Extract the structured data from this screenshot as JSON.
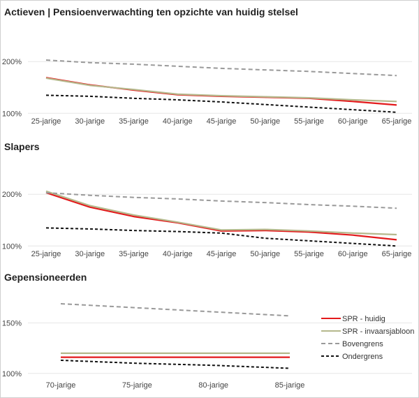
{
  "chart_data": [
    {
      "type": "line",
      "title": "Actieven | Pensioenverwachting ten opzichte van huidig stelsel",
      "categories": [
        "25-jarige",
        "30-jarige",
        "35-jarige",
        "40-jarige",
        "45-jarige",
        "50-jarige",
        "55-jarige",
        "60-jarige",
        "65-jarige"
      ],
      "yticks": [
        "100%",
        "200%"
      ],
      "ylim": [
        0.95,
        2.3
      ],
      "series": [
        {
          "name": "SPR - huidig",
          "color": "#e31a1c",
          "dash": "",
          "values": [
            1.69,
            1.55,
            1.45,
            1.36,
            1.33,
            1.31,
            1.29,
            1.23,
            1.16
          ]
        },
        {
          "name": "SPR - invaarsjabloon",
          "color": "#b5b88c",
          "dash": "",
          "values": [
            1.68,
            1.54,
            1.46,
            1.37,
            1.34,
            1.32,
            1.3,
            1.26,
            1.23
          ]
        },
        {
          "name": "Bovengrens",
          "color": "#999999",
          "dash": "6,4",
          "values": [
            2.03,
            1.98,
            1.95,
            1.91,
            1.87,
            1.84,
            1.81,
            1.77,
            1.73
          ]
        },
        {
          "name": "Ondergrens",
          "color": "#111111",
          "dash": "4,3",
          "values": [
            1.35,
            1.33,
            1.29,
            1.26,
            1.22,
            1.17,
            1.12,
            1.07,
            1.02
          ]
        }
      ]
    },
    {
      "type": "line",
      "title": "Slapers",
      "categories": [
        "25-jarige",
        "30-jarige",
        "35-jarige",
        "40-jarige",
        "45-jarige",
        "50-jarige",
        "55-jarige",
        "60-jarige",
        "65-jarige"
      ],
      "yticks": [
        "100%",
        "200%"
      ],
      "ylim": [
        0.95,
        2.3
      ],
      "series": [
        {
          "name": "SPR - huidig",
          "color": "#e31a1c",
          "dash": "",
          "values": [
            2.03,
            1.75,
            1.57,
            1.45,
            1.29,
            1.3,
            1.27,
            1.21,
            1.12
          ]
        },
        {
          "name": "SPR - invaarsjabloon",
          "color": "#b5b88c",
          "dash": "",
          "values": [
            2.06,
            1.78,
            1.6,
            1.46,
            1.31,
            1.32,
            1.29,
            1.25,
            1.22
          ]
        },
        {
          "name": "Bovengrens",
          "color": "#999999",
          "dash": "6,4",
          "values": [
            2.03,
            1.98,
            1.94,
            1.91,
            1.87,
            1.84,
            1.8,
            1.77,
            1.73
          ]
        },
        {
          "name": "Ondergrens",
          "color": "#111111",
          "dash": "4,3",
          "values": [
            1.35,
            1.33,
            1.3,
            1.28,
            1.25,
            1.15,
            1.1,
            1.05,
            1.0
          ]
        }
      ]
    },
    {
      "type": "line",
      "title": "Gepensioneerden",
      "categories": [
        "70-jarige",
        "75-jarige",
        "80-jarige",
        "85-jarige"
      ],
      "yticks": [
        "100%",
        "150%"
      ],
      "ylim": [
        0.95,
        1.78
      ],
      "legend_position": "right",
      "series": [
        {
          "name": "SPR - huidig",
          "color": "#e31a1c",
          "dash": "",
          "values": [
            1.16,
            1.16,
            1.16,
            1.16
          ]
        },
        {
          "name": "SPR - invaarsjabloon",
          "color": "#b5b88c",
          "dash": "",
          "values": [
            1.2,
            1.2,
            1.2,
            1.2
          ]
        },
        {
          "name": "Bovengrens",
          "color": "#999999",
          "dash": "6,4",
          "values": [
            1.69,
            1.65,
            1.61,
            1.57
          ]
        },
        {
          "name": "Ondergrens",
          "color": "#111111",
          "dash": "4,3",
          "values": [
            1.13,
            1.1,
            1.08,
            1.05
          ]
        }
      ]
    }
  ]
}
